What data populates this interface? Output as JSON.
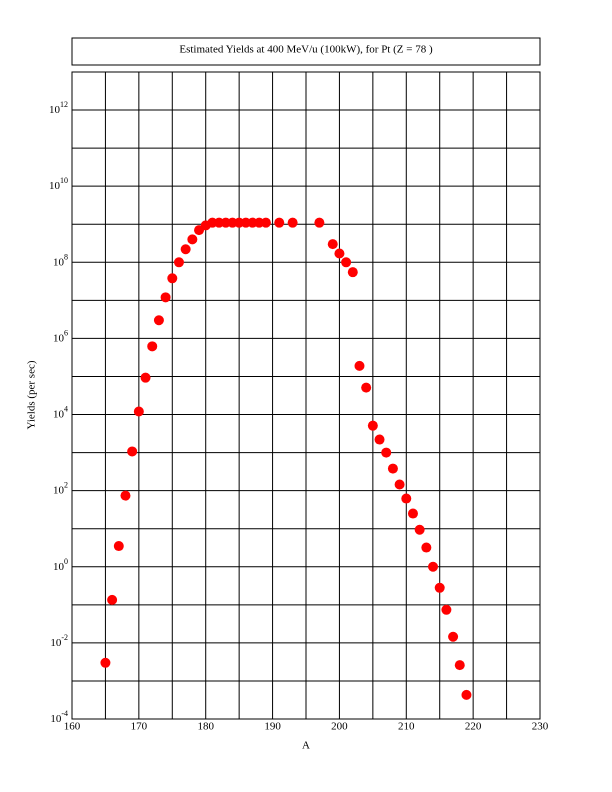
{
  "chart_data": {
    "type": "scatter",
    "title": "Estimated Yields at 400 MeV/u (100kW), for Pt (Z = 78 )",
    "x_label": "A",
    "y_label": "Yields (per sec)",
    "y_scale": "log",
    "grid": true,
    "xlim": [
      160,
      230
    ],
    "xticks": [
      160,
      170,
      180,
      190,
      200,
      210,
      220,
      230
    ],
    "xminorticks": [
      165,
      175,
      185,
      195,
      205,
      215,
      225
    ],
    "ylim": [
      0.0001,
      10000000000000.0
    ],
    "yticks": [
      {
        "value": 0.0001,
        "label": "10^-4"
      },
      {
        "value": 0.01,
        "label": "10^-2"
      },
      {
        "value": 1,
        "label": "10^0"
      },
      {
        "value": 100,
        "label": "10^2"
      },
      {
        "value": 10000,
        "label": "10^4"
      },
      {
        "value": 1000000.0,
        "label": "10^6"
      },
      {
        "value": 100000000.0,
        "label": "10^8"
      },
      {
        "value": 10000000000.0,
        "label": "10^10"
      },
      {
        "value": 1000000000000.0,
        "label": "10^12"
      }
    ],
    "yminorticks": [
      0.001,
      0.1,
      10,
      1000,
      100000.0,
      10000000.0,
      1000000000.0,
      100000000000.0,
      10000000000000.0
    ],
    "series": [
      {
        "color": "#ff0000",
        "x": [
          165,
          166,
          167,
          168,
          169,
          170,
          171,
          172,
          173,
          174,
          175,
          176,
          177,
          178,
          179,
          180,
          181,
          182,
          183,
          184,
          185,
          186,
          187,
          188,
          189,
          191,
          193,
          197,
          199,
          200,
          201,
          202,
          203,
          204,
          205,
          206,
          207,
          208,
          209,
          210,
          211,
          212,
          213,
          214,
          215,
          216,
          217,
          218,
          219
        ],
        "values": [
          0.003,
          0.135,
          3.5,
          74,
          1070,
          12000,
          93000,
          620000,
          3000000,
          12000000,
          38000000,
          100000000,
          220000000,
          400000000,
          700000000,
          930000000,
          1100000000,
          1100000000,
          1100000000,
          1100000000,
          1100000000,
          1100000000,
          1100000000,
          1100000000,
          1100000000,
          1100000000,
          1100000000,
          1100000000,
          300000000,
          170000000,
          100000000,
          55000000,
          190000,
          51000,
          5100,
          2200,
          1000,
          380,
          145,
          62,
          25,
          9.4,
          3.2,
          1,
          0.28,
          0.074,
          0.0145,
          0.0026,
          0.00043
        ]
      }
    ]
  }
}
